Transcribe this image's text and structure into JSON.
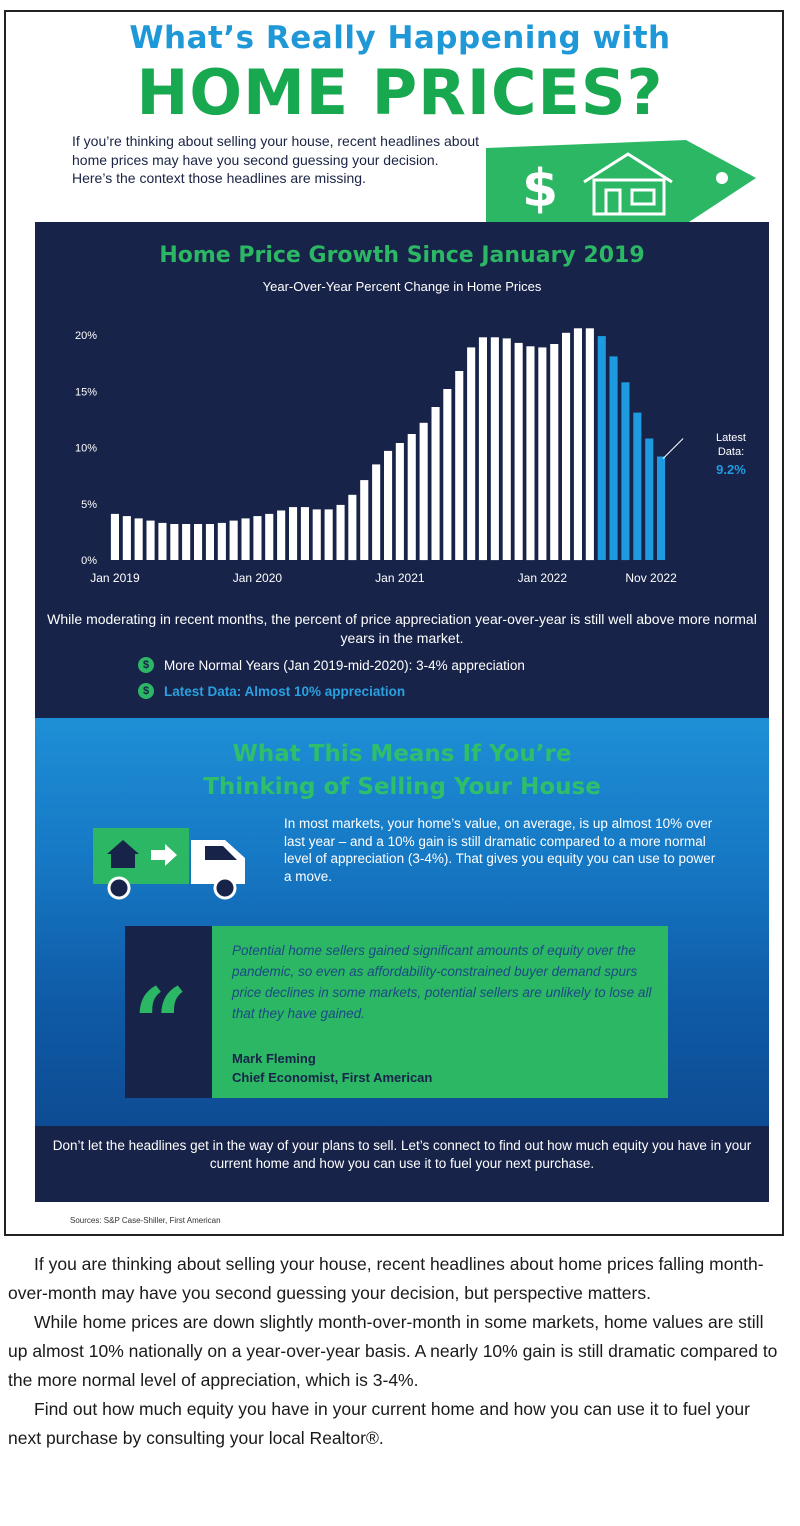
{
  "header": {
    "title_line1": "What’s Really Happening with",
    "title_line2": "HOME PRICES?",
    "intro": "If you’re thinking about selling your house, recent headlines about home prices may have you second guessing your decision. Here’s the context those headlines are missing."
  },
  "tag": {
    "symbol": "$"
  },
  "chart_section": {
    "note": "While moderating in recent months, the percent of price appreciation year-over-year is still well above more normal years in the market.",
    "legend": [
      {
        "icon": "$",
        "text": "More Normal Years (Jan 2019-mid-2020): 3-4% appreciation"
      },
      {
        "icon": "$",
        "text": "Latest Data: Almost 10% appreciation"
      }
    ]
  },
  "chart_data": {
    "type": "bar",
    "title": "Home Price Growth Since January 2019",
    "subtitle": "Year-Over-Year Percent Change in Home Prices",
    "x_tick_labels": [
      "Jan 2019",
      "Jan 2020",
      "Jan 2021",
      "Jan 2022",
      "Nov 2022"
    ],
    "y_tick_labels": [
      "0%",
      "5%",
      "10%",
      "15%",
      "20%"
    ],
    "ylim": [
      0,
      20
    ],
    "grid": false,
    "annotation": {
      "label": "Latest Data:",
      "value": "9.2%"
    },
    "colors": {
      "historical": "#ffffff",
      "latest": "#1e9be0"
    },
    "highlight_from_index": 41,
    "values": [
      4.1,
      3.9,
      3.7,
      3.5,
      3.3,
      3.2,
      3.2,
      3.2,
      3.2,
      3.3,
      3.5,
      3.7,
      3.9,
      4.1,
      4.4,
      4.7,
      4.7,
      4.5,
      4.5,
      4.9,
      5.8,
      7.1,
      8.5,
      9.7,
      10.4,
      11.2,
      12.2,
      13.6,
      15.2,
      16.8,
      18.9,
      19.8,
      19.8,
      19.7,
      19.3,
      19.0,
      18.9,
      19.2,
      20.2,
      20.6,
      20.6,
      19.9,
      18.1,
      15.8,
      13.1,
      10.8,
      9.2
    ]
  },
  "selling_section": {
    "title_line1": "What This Means If You’re",
    "title_line2": "Thinking of Selling Your House",
    "body": "In most markets, your home’s value, on average, is up almost 10% over last year – and a 10% gain is still dramatic compared to a more normal level of appreciation (3-4%). That gives you equity you can use to power a move."
  },
  "quote": {
    "mark": "“",
    "text": "Potential home sellers gained significant amounts of equity over the pandemic, so even as affordability-constrained buyer demand spurs price declines in some markets, potential sellers are unlikely to lose all that they have gained.",
    "name": "Mark Fleming",
    "role": "Chief Economist, First American"
  },
  "cta": {
    "text": "Don’t let the headlines get in the way of your plans to sell. Let’s connect to find out how much equity you have in your current home and how you can use it to fuel your next purchase."
  },
  "sources": "Sources: S&P Case-Shiller, First American",
  "article": [
    "If you are thinking about selling your house, recent headlines about home prices falling month-over-month may have you second guessing your decision, but perspective matters.",
    "While home prices are down slightly month-over-month in some markets, home values are still up almost 10% nationally on a year-over-year basis. A nearly 10% gain is still dramatic compared to the more normal level of appreciation, which is 3-4%.",
    "Find out how much equity you have in your current home and how you can use it to fuel your next purchase by consulting your local Realtor®."
  ]
}
